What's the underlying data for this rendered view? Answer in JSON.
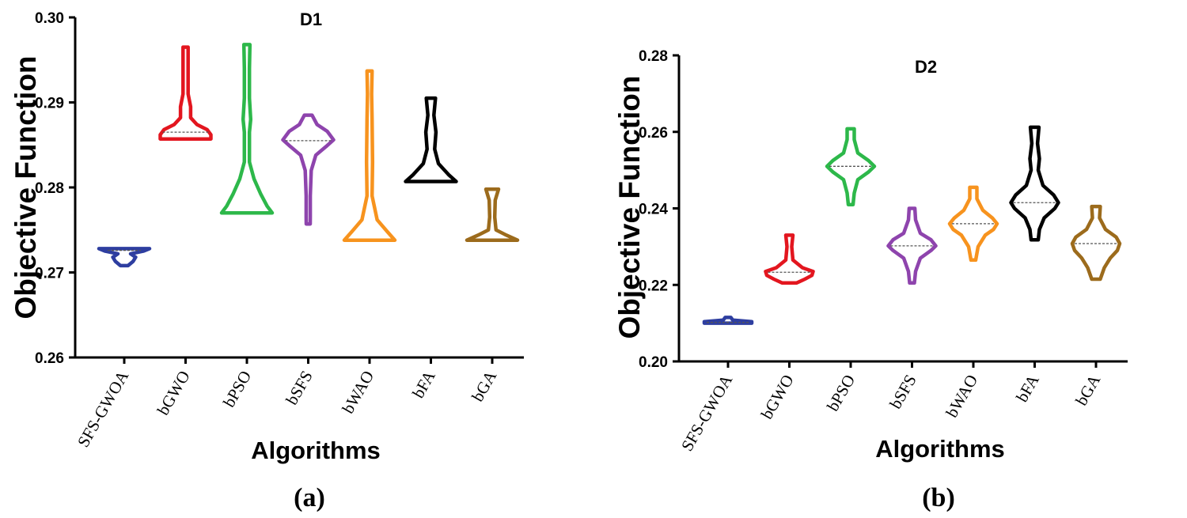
{
  "chart_data": [
    {
      "type": "violin",
      "title": "D1",
      "panel_label": "(a)",
      "xlabel": "Algorithms",
      "ylabel": "Objective Function",
      "ylim": [
        0.26,
        0.3
      ],
      "yticks": [
        "0.26",
        "0.27",
        "0.28",
        "0.29",
        "0.30"
      ],
      "categories": [
        "SFS-GWOA",
        "bGWO",
        "bPSO",
        "bSFS",
        "bWAO",
        "bFA",
        "bGA"
      ],
      "colors": [
        "#2e3ea0",
        "#e3161f",
        "#2db84a",
        "#8e44ad",
        "#f7931e",
        "#000000",
        "#9c6b1c"
      ],
      "series": [
        {
          "name": "SFS-GWOA",
          "min": 0.2708,
          "max": 0.2728,
          "median": 0.2726,
          "shape": [
            [
              0.2708,
              0.15
            ],
            [
              0.2713,
              0.35
            ],
            [
              0.2718,
              0.45
            ],
            [
              0.2722,
              0.25
            ],
            [
              0.2725,
              0.75
            ],
            [
              0.2728,
              1.0
            ]
          ]
        },
        {
          "name": "bGWO",
          "min": 0.2857,
          "max": 0.2965,
          "median": 0.2865,
          "shape": [
            [
              0.2857,
              1.0
            ],
            [
              0.2862,
              1.0
            ],
            [
              0.2868,
              0.85
            ],
            [
              0.2874,
              0.45
            ],
            [
              0.2882,
              0.2
            ],
            [
              0.2895,
              0.2
            ],
            [
              0.291,
              0.1
            ],
            [
              0.2935,
              0.1
            ],
            [
              0.2965,
              0.1
            ]
          ]
        },
        {
          "name": "bPSO",
          "min": 0.277,
          "max": 0.2968,
          "median": null,
          "shape": [
            [
              0.277,
              1.0
            ],
            [
              0.2778,
              0.8
            ],
            [
              0.2792,
              0.55
            ],
            [
              0.281,
              0.28
            ],
            [
              0.283,
              0.1
            ],
            [
              0.2865,
              0.1
            ],
            [
              0.288,
              0.15
            ],
            [
              0.2905,
              0.1
            ],
            [
              0.294,
              0.1
            ],
            [
              0.2968,
              0.12
            ]
          ]
        },
        {
          "name": "bSFS",
          "min": 0.2757,
          "max": 0.2885,
          "median": 0.2855,
          "shape": [
            [
              0.2757,
              0.05
            ],
            [
              0.2765,
              0.08
            ],
            [
              0.279,
              0.08
            ],
            [
              0.282,
              0.12
            ],
            [
              0.2838,
              0.3
            ],
            [
              0.2848,
              0.7
            ],
            [
              0.2856,
              1.0
            ],
            [
              0.2866,
              0.75
            ],
            [
              0.2874,
              0.35
            ],
            [
              0.2885,
              0.15
            ]
          ]
        },
        {
          "name": "bWAO",
          "min": 0.2738,
          "max": 0.2937,
          "median": null,
          "shape": [
            [
              0.2738,
              1.0
            ],
            [
              0.2748,
              0.7
            ],
            [
              0.2762,
              0.3
            ],
            [
              0.279,
              0.1
            ],
            [
              0.283,
              0.12
            ],
            [
              0.288,
              0.1
            ],
            [
              0.291,
              0.08
            ],
            [
              0.2937,
              0.1
            ]
          ]
        },
        {
          "name": "bFA",
          "min": 0.2807,
          "max": 0.2905,
          "median": null,
          "shape": [
            [
              0.2807,
              1.0
            ],
            [
              0.2815,
              0.7
            ],
            [
              0.2828,
              0.3
            ],
            [
              0.2845,
              0.15
            ],
            [
              0.2865,
              0.2
            ],
            [
              0.2885,
              0.12
            ],
            [
              0.2905,
              0.18
            ]
          ]
        },
        {
          "name": "bGA",
          "min": 0.2738,
          "max": 0.2798,
          "median": null,
          "shape": [
            [
              0.2738,
              1.0
            ],
            [
              0.2744,
              0.55
            ],
            [
              0.275,
              0.15
            ],
            [
              0.2765,
              0.1
            ],
            [
              0.2785,
              0.12
            ],
            [
              0.2798,
              0.25
            ]
          ]
        }
      ]
    },
    {
      "type": "violin",
      "title": "D2",
      "panel_label": "(b)",
      "xlabel": "Algorithms",
      "ylabel": "Objective Function",
      "ylim": [
        0.2,
        0.28
      ],
      "yticks": [
        "0.20",
        "0.22",
        "0.24",
        "0.26",
        "0.28"
      ],
      "categories": [
        "SFS-GWOA",
        "bGWO",
        "bPSO",
        "bSFS",
        "bWAO",
        "bFA",
        "bGA"
      ],
      "colors": [
        "#2e3ea0",
        "#e3161f",
        "#2db84a",
        "#8e44ad",
        "#f7931e",
        "#000000",
        "#9c6b1c"
      ],
      "series": [
        {
          "name": "SFS-GWOA",
          "min": 0.21,
          "max": 0.2115,
          "median": 0.2102,
          "shape": [
            [
              0.21,
              1.0
            ],
            [
              0.2104,
              1.0
            ],
            [
              0.2108,
              0.2
            ],
            [
              0.2115,
              0.12
            ]
          ]
        },
        {
          "name": "bGWO",
          "min": 0.2205,
          "max": 0.233,
          "median": 0.2233,
          "shape": [
            [
              0.2205,
              0.3
            ],
            [
              0.2215,
              0.65
            ],
            [
              0.2225,
              0.95
            ],
            [
              0.2235,
              1.0
            ],
            [
              0.2245,
              0.55
            ],
            [
              0.2265,
              0.15
            ],
            [
              0.23,
              0.1
            ],
            [
              0.233,
              0.15
            ]
          ]
        },
        {
          "name": "bPSO",
          "min": 0.241,
          "max": 0.2608,
          "median": 0.251,
          "shape": [
            [
              0.241,
              0.1
            ],
            [
              0.244,
              0.15
            ],
            [
              0.2475,
              0.3
            ],
            [
              0.2495,
              0.75
            ],
            [
              0.251,
              1.0
            ],
            [
              0.2525,
              0.75
            ],
            [
              0.2545,
              0.3
            ],
            [
              0.258,
              0.15
            ],
            [
              0.2608,
              0.15
            ]
          ]
        },
        {
          "name": "bSFS",
          "min": 0.2205,
          "max": 0.24,
          "median": 0.2302,
          "shape": [
            [
              0.2205,
              0.1
            ],
            [
              0.2235,
              0.15
            ],
            [
              0.227,
              0.35
            ],
            [
              0.229,
              0.8
            ],
            [
              0.2302,
              1.0
            ],
            [
              0.2318,
              0.8
            ],
            [
              0.2335,
              0.35
            ],
            [
              0.237,
              0.15
            ],
            [
              0.24,
              0.12
            ]
          ]
        },
        {
          "name": "bWAO",
          "min": 0.2265,
          "max": 0.2455,
          "median": 0.236,
          "shape": [
            [
              0.2265,
              0.1
            ],
            [
              0.23,
              0.2
            ],
            [
              0.233,
              0.5
            ],
            [
              0.2345,
              0.85
            ],
            [
              0.236,
              1.0
            ],
            [
              0.2375,
              0.8
            ],
            [
              0.2395,
              0.4
            ],
            [
              0.2425,
              0.15
            ],
            [
              0.2455,
              0.15
            ]
          ]
        },
        {
          "name": "bFA",
          "min": 0.2318,
          "max": 0.2612,
          "median": 0.2415,
          "shape": [
            [
              0.2318,
              0.15
            ],
            [
              0.2345,
              0.2
            ],
            [
              0.2375,
              0.4
            ],
            [
              0.24,
              0.85
            ],
            [
              0.2415,
              1.0
            ],
            [
              0.2435,
              0.8
            ],
            [
              0.246,
              0.35
            ],
            [
              0.25,
              0.15
            ],
            [
              0.253,
              0.2
            ],
            [
              0.257,
              0.12
            ],
            [
              0.2612,
              0.18
            ]
          ]
        },
        {
          "name": "bGA",
          "min": 0.2215,
          "max": 0.2405,
          "median": 0.2308,
          "shape": [
            [
              0.2215,
              0.18
            ],
            [
              0.2245,
              0.35
            ],
            [
              0.227,
              0.6
            ],
            [
              0.229,
              0.9
            ],
            [
              0.2308,
              1.0
            ],
            [
              0.2325,
              0.85
            ],
            [
              0.2345,
              0.4
            ],
            [
              0.2375,
              0.15
            ],
            [
              0.2405,
              0.18
            ]
          ]
        }
      ]
    }
  ]
}
